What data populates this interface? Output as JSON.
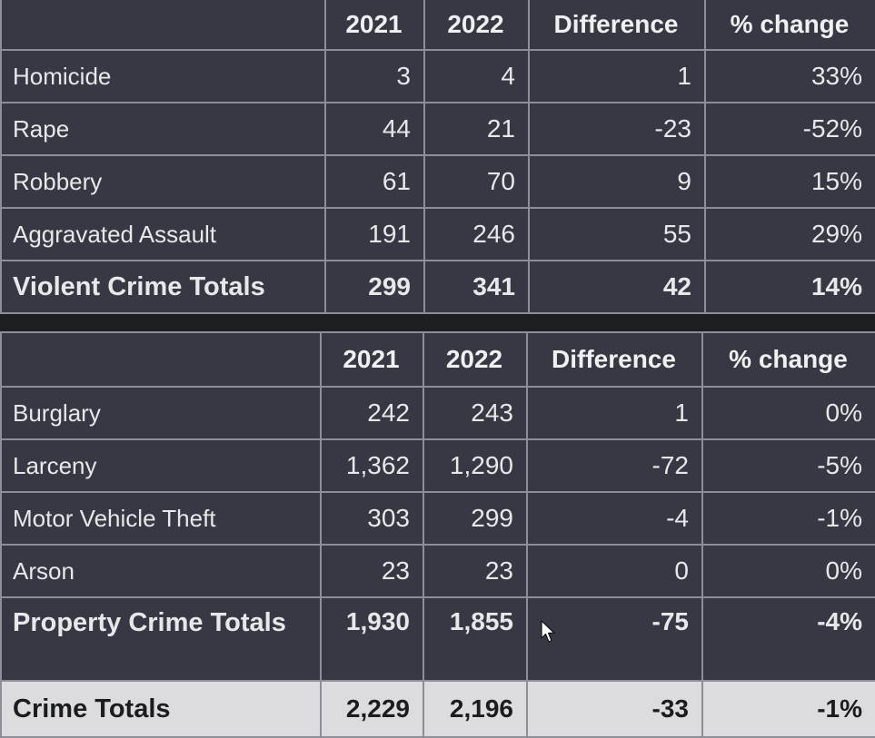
{
  "columns": {
    "y2021": "2021",
    "y2022": "2022",
    "difference": "Difference",
    "pct_change": "% change"
  },
  "violent": {
    "rows": [
      {
        "label": "Homicide",
        "y2021": "3",
        "y2022": "4",
        "difference": "1",
        "pct": "33%"
      },
      {
        "label": "Rape",
        "y2021": "44",
        "y2022": "21",
        "difference": "-23",
        "pct": "-52%"
      },
      {
        "label": "Robbery",
        "y2021": "61",
        "y2022": "70",
        "difference": "9",
        "pct": "15%"
      },
      {
        "label": "Aggravated Assault",
        "y2021": "191",
        "y2022": "246",
        "difference": "55",
        "pct": "29%"
      }
    ],
    "total": {
      "label": "Violent Crime Totals",
      "y2021": "299",
      "y2022": "341",
      "difference": "42",
      "pct": "14%"
    }
  },
  "property": {
    "rows": [
      {
        "label": "Burglary",
        "y2021": "242",
        "y2022": "243",
        "difference": "1",
        "pct": "0%"
      },
      {
        "label": "Larceny",
        "y2021": "1,362",
        "y2022": "1,290",
        "difference": "-72",
        "pct": "-5%"
      },
      {
        "label": "Motor Vehicle Theft",
        "y2021": "303",
        "y2022": "299",
        "difference": "-4",
        "pct": "-1%"
      },
      {
        "label": "Arson",
        "y2021": "23",
        "y2022": "23",
        "difference": "0",
        "pct": "0%"
      }
    ],
    "total": {
      "label": "Property Crime Totals",
      "y2021": "1,930",
      "y2022": "1,855",
      "difference": "-75",
      "pct": "-4%"
    }
  },
  "grand_total": {
    "label": "Crime Totals",
    "y2021": "2,229",
    "y2022": "2,196",
    "difference": "-33",
    "pct": "-1%"
  },
  "colors": {
    "cell_background": "#363843",
    "grid_lines": "#8d8f98",
    "text": "#e8e8ea",
    "grand_total_background": "#dcdcde"
  },
  "icons": {
    "pointer": "mouse-pointer-icon"
  }
}
